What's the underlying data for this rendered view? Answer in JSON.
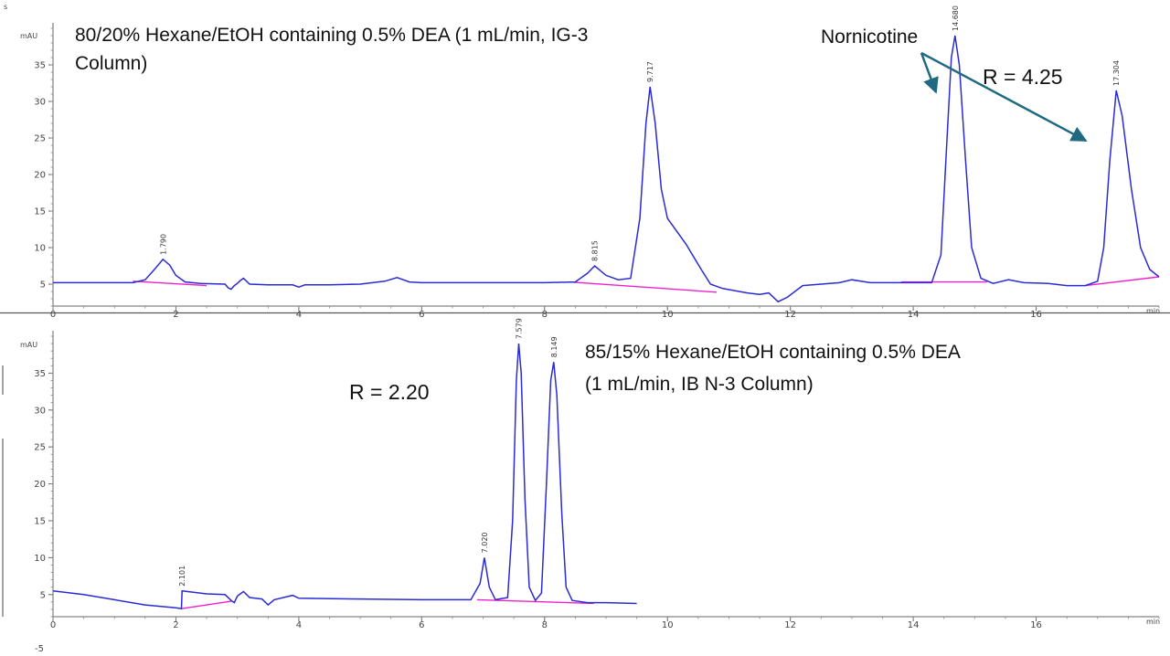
{
  "stray_marks": {
    "top": "s",
    "bottom": "-5"
  },
  "chart_data": [
    {
      "type": "line",
      "title_line1": "80/20% Hexane/EtOH containing 0.5% DEA (1 mL/min, IG-3",
      "title_line2": "Column)",
      "ylabel": "mAU",
      "xlabel": "min",
      "xlim": [
        0,
        18
      ],
      "ylim": [
        2,
        40
      ],
      "xticks": [
        0,
        2,
        4,
        6,
        8,
        10,
        12,
        14,
        16
      ],
      "yticks": [
        5,
        10,
        15,
        20,
        25,
        30,
        35
      ],
      "line_color": "#2b2bd4",
      "baseline_color": "#ee22cc",
      "arrow_color": "#1f6a80",
      "series": [
        {
          "points": [
            [
              0,
              5.2
            ],
            [
              0.5,
              5.2
            ],
            [
              1.0,
              5.2
            ],
            [
              1.3,
              5.2
            ],
            [
              1.5,
              5.6
            ],
            [
              1.65,
              7.0
            ],
            [
              1.79,
              8.4
            ],
            [
              1.9,
              7.6
            ],
            [
              2.0,
              6.2
            ],
            [
              2.15,
              5.3
            ],
            [
              2.4,
              5.1
            ],
            [
              2.8,
              5.0
            ],
            [
              2.85,
              4.5
            ],
            [
              2.9,
              4.3
            ],
            [
              2.95,
              4.8
            ],
            [
              3.0,
              5.1
            ],
            [
              3.05,
              5.5
            ],
            [
              3.1,
              5.8
            ],
            [
              3.2,
              5.0
            ],
            [
              3.5,
              4.9
            ],
            [
              3.9,
              4.9
            ],
            [
              4.0,
              4.6
            ],
            [
              4.1,
              4.9
            ],
            [
              4.5,
              4.9
            ],
            [
              5.0,
              5.0
            ],
            [
              5.4,
              5.4
            ],
            [
              5.6,
              5.9
            ],
            [
              5.8,
              5.3
            ],
            [
              6.0,
              5.2
            ],
            [
              7.0,
              5.2
            ],
            [
              8.0,
              5.2
            ],
            [
              8.5,
              5.3
            ],
            [
              8.7,
              6.5
            ],
            [
              8.815,
              7.5
            ],
            [
              9.0,
              6.2
            ],
            [
              9.2,
              5.6
            ],
            [
              9.4,
              5.8
            ],
            [
              9.55,
              14
            ],
            [
              9.65,
              27
            ],
            [
              9.717,
              32
            ],
            [
              9.8,
              27
            ],
            [
              9.9,
              18
            ],
            [
              10.0,
              14
            ],
            [
              10.3,
              10.5
            ],
            [
              10.55,
              7
            ],
            [
              10.7,
              5
            ],
            [
              10.9,
              4.4
            ],
            [
              11.3,
              3.8
            ],
            [
              11.5,
              3.6
            ],
            [
              11.65,
              3.8
            ],
            [
              11.8,
              2.6
            ],
            [
              11.95,
              3.2
            ],
            [
              12.2,
              4.8
            ],
            [
              12.5,
              5.0
            ],
            [
              12.8,
              5.2
            ],
            [
              13.0,
              5.6
            ],
            [
              13.3,
              5.2
            ],
            [
              14.0,
              5.2
            ],
            [
              14.3,
              5.2
            ],
            [
              14.45,
              9
            ],
            [
              14.55,
              25
            ],
            [
              14.62,
              36
            ],
            [
              14.68,
              39
            ],
            [
              14.75,
              35
            ],
            [
              14.85,
              22
            ],
            [
              14.95,
              10
            ],
            [
              15.1,
              5.8
            ],
            [
              15.3,
              5.1
            ],
            [
              15.55,
              5.6
            ],
            [
              15.8,
              5.2
            ],
            [
              16.2,
              5.1
            ],
            [
              16.5,
              4.8
            ],
            [
              16.8,
              4.8
            ],
            [
              17.0,
              5.4
            ],
            [
              17.1,
              10
            ],
            [
              17.2,
              22
            ],
            [
              17.304,
              31.5
            ],
            [
              17.4,
              28
            ],
            [
              17.55,
              18
            ],
            [
              17.7,
              10
            ],
            [
              17.85,
              7
            ],
            [
              18.0,
              6.0
            ]
          ]
        }
      ],
      "baselines": [
        [
          [
            1.3,
            5.4
          ],
          [
            2.5,
            4.8
          ]
        ],
        [
          [
            8.4,
            5.3
          ],
          [
            10.8,
            3.9
          ]
        ],
        [
          [
            13.8,
            5.3
          ],
          [
            15.2,
            5.3
          ]
        ],
        [
          [
            16.8,
            4.8
          ],
          [
            18.0,
            6.0
          ]
        ]
      ],
      "peak_labels": [
        {
          "x": 1.79,
          "y": 8.4,
          "text": "1.790"
        },
        {
          "x": 8.815,
          "y": 7.5,
          "text": "8.815"
        },
        {
          "x": 9.717,
          "y": 32,
          "text": "9.717"
        },
        {
          "x": 14.68,
          "y": 39,
          "text": "14.680"
        },
        {
          "x": 17.304,
          "y": 31.5,
          "text": "17.304"
        }
      ],
      "annotation_name": "Nornicotine",
      "annotation_r": "R = 4.25"
    },
    {
      "type": "line",
      "title_line1": "85/15% Hexane/EtOH containing 0.5% DEA",
      "title_line2": "(1 mL/min, IB N-3 Column)",
      "ylabel": "mAU",
      "xlabel": "min",
      "xlim": [
        0,
        18
      ],
      "ylim": [
        2,
        40
      ],
      "xticks": [
        0,
        2,
        4,
        6,
        8,
        10,
        12,
        14,
        16
      ],
      "yticks": [
        5,
        10,
        15,
        20,
        25,
        30,
        35
      ],
      "line_color": "#2b2bd4",
      "baseline_color": "#ee22cc",
      "series": [
        {
          "points": [
            [
              0,
              5.5
            ],
            [
              0.5,
              5.0
            ],
            [
              1.0,
              4.3
            ],
            [
              1.5,
              3.6
            ],
            [
              2.0,
              3.2
            ],
            [
              2.09,
              3.1
            ],
            [
              2.101,
              5.5
            ],
            [
              2.5,
              5.1
            ],
            [
              2.8,
              5.0
            ],
            [
              2.9,
              4.2
            ],
            [
              2.95,
              3.9
            ],
            [
              3.0,
              4.8
            ],
            [
              3.1,
              5.4
            ],
            [
              3.2,
              4.6
            ],
            [
              3.4,
              4.4
            ],
            [
              3.5,
              3.6
            ],
            [
              3.6,
              4.3
            ],
            [
              3.9,
              4.9
            ],
            [
              4.0,
              4.5
            ],
            [
              5.0,
              4.4
            ],
            [
              6.0,
              4.3
            ],
            [
              6.8,
              4.3
            ],
            [
              6.95,
              6.5
            ],
            [
              7.02,
              10
            ],
            [
              7.1,
              6
            ],
            [
              7.2,
              4.3
            ],
            [
              7.4,
              4.6
            ],
            [
              7.48,
              15
            ],
            [
              7.54,
              34
            ],
            [
              7.58,
              39
            ],
            [
              7.62,
              35
            ],
            [
              7.68,
              18
            ],
            [
              7.75,
              6
            ],
            [
              7.85,
              4.2
            ],
            [
              7.95,
              5.2
            ],
            [
              8.03,
              20
            ],
            [
              8.1,
              34
            ],
            [
              8.149,
              36.5
            ],
            [
              8.2,
              32
            ],
            [
              8.28,
              16
            ],
            [
              8.35,
              6
            ],
            [
              8.45,
              4.2
            ],
            [
              8.7,
              3.9
            ],
            [
              9.0,
              3.9
            ],
            [
              9.5,
              3.8
            ]
          ]
        }
      ],
      "baselines": [
        [
          [
            2.1,
            3.1
          ],
          [
            2.9,
            4.1
          ]
        ],
        [
          [
            6.9,
            4.3
          ],
          [
            8.8,
            3.8
          ]
        ]
      ],
      "peak_labels": [
        {
          "x": 2.101,
          "y": 5.5,
          "text": "2.101"
        },
        {
          "x": 7.02,
          "y": 10,
          "text": "7.020"
        },
        {
          "x": 7.58,
          "y": 39,
          "text": "7.579"
        },
        {
          "x": 8.149,
          "y": 36.5,
          "text": "8.149"
        }
      ],
      "annotation_r": "R = 2.20"
    }
  ]
}
